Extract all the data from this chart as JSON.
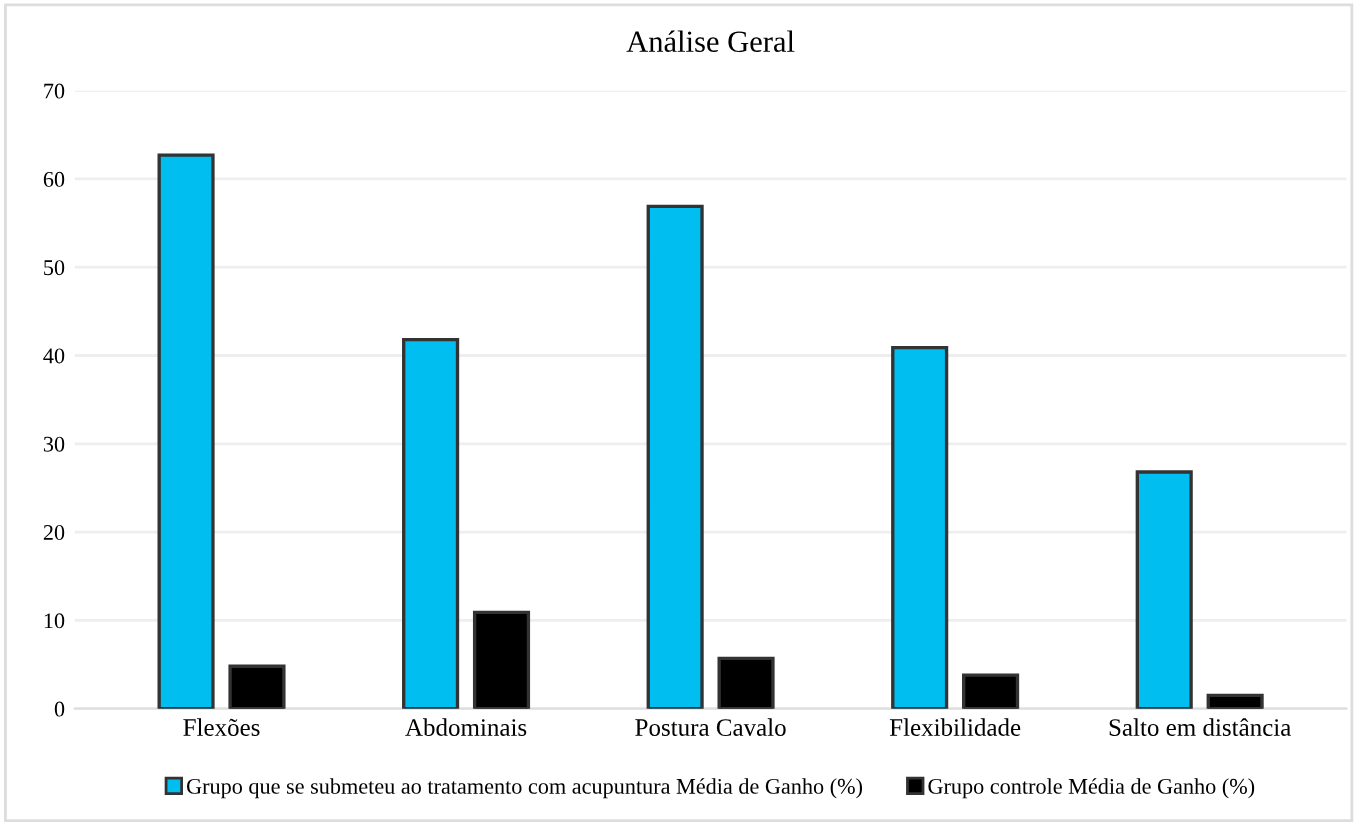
{
  "chart_data": {
    "type": "bar",
    "title": "Análise Geral",
    "categories": [
      "Flexões",
      "Abdominais",
      "Postura Cavalo",
      "Flexibilidade",
      "Salto em distância"
    ],
    "series": [
      {
        "name": "Grupo que se submeteu ao tratamento com acupuntura Média de Ganho (%)",
        "color": "#00bff0",
        "values": [
          62.7,
          41.8,
          56.9,
          40.9,
          26.8
        ]
      },
      {
        "name": "Grupo controle Média de Ganho (%)",
        "color": "#000000",
        "values": [
          4.8,
          10.9,
          5.7,
          3.8,
          1.5
        ]
      }
    ],
    "ylim": [
      0,
      70
    ],
    "yticks": [
      0,
      10,
      20,
      30,
      40,
      50,
      60,
      70
    ],
    "grid": "y",
    "legend": "bottom"
  }
}
